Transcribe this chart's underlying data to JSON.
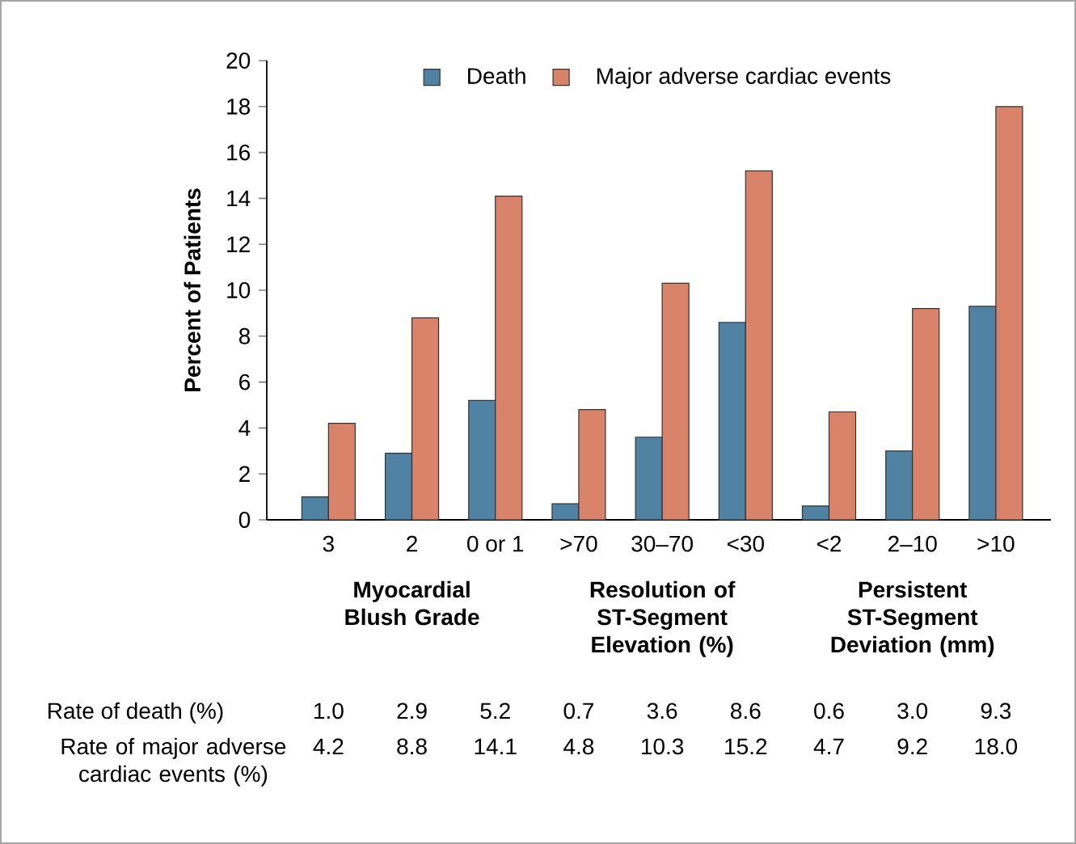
{
  "chart_data": {
    "type": "bar",
    "categories": [
      "3",
      "2",
      "0 or 1",
      ">70",
      "30–70",
      "<30",
      "<2",
      "2–10",
      ">10"
    ],
    "series": [
      {
        "name": "Death",
        "color": "#4f82a3",
        "values": [
          1.0,
          2.9,
          5.2,
          0.7,
          3.6,
          8.6,
          0.6,
          3.0,
          9.3
        ],
        "value_labels": [
          "1.0",
          "2.9",
          "5.2",
          "0.7",
          "3.6",
          "8.6",
          "0.6",
          "3.0",
          "9.3"
        ]
      },
      {
        "name": "Major adverse cardiac events",
        "color": "#d9836a",
        "values": [
          4.2,
          8.8,
          14.1,
          4.8,
          10.3,
          15.2,
          4.7,
          9.2,
          18.0
        ],
        "value_labels": [
          "4.2",
          "8.8",
          "14.1",
          "4.8",
          "10.3",
          "15.2",
          "4.7",
          "9.2",
          "18.0"
        ]
      }
    ],
    "ylabel": "Percent of Patients",
    "ylim": [
      0,
      20
    ],
    "yticks": [
      0,
      2,
      4,
      6,
      8,
      10,
      12,
      14,
      16,
      18,
      20
    ],
    "legend": "top",
    "annotations": [
      "Myocardial Blush Grade",
      "Resolution of ST-Segment Elevation (%)",
      "Persistent ST-Segment Deviation (mm)",
      "Rate of death (%)",
      "Rate of major adverse cardiac events (%)"
    ]
  }
}
